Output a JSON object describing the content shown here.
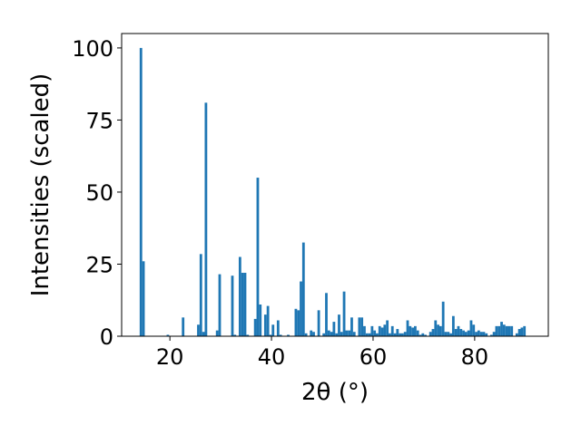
{
  "chart_data": {
    "type": "bar",
    "title": "",
    "xlabel": "2θ (°)",
    "ylabel": "Intensities (scaled)",
    "xlim": [
      10.5,
      94.5
    ],
    "ylim": [
      0,
      105
    ],
    "xticks": [
      20,
      40,
      60,
      80
    ],
    "yticks": [
      0,
      25,
      50,
      75,
      100
    ],
    "grid": false,
    "bar_color": "#1f77b4",
    "bin_width": 0.5,
    "x": [
      14.3,
      14.8,
      19.6,
      22.6,
      25.6,
      26.1,
      26.6,
      27.1,
      29.3,
      29.8,
      32.3,
      32.8,
      33.8,
      34.3,
      34.8,
      35.3,
      36.8,
      37.3,
      37.8,
      38.8,
      39.3,
      39.8,
      40.3,
      41.3,
      41.8,
      43.3,
      44.8,
      45.3,
      45.8,
      46.3,
      46.8,
      47.8,
      48.3,
      49.3,
      50.3,
      50.8,
      51.3,
      51.8,
      52.3,
      52.8,
      53.3,
      53.8,
      54.3,
      54.8,
      55.3,
      55.8,
      56.3,
      57.3,
      57.8,
      58.3,
      58.8,
      59.3,
      59.8,
      60.3,
      60.8,
      61.3,
      61.8,
      62.3,
      62.8,
      63.3,
      63.8,
      64.3,
      64.8,
      65.3,
      65.8,
      66.3,
      66.8,
      67.3,
      67.8,
      68.3,
      68.8,
      69.3,
      69.8,
      70.3,
      71.3,
      71.8,
      72.3,
      72.8,
      73.3,
      73.8,
      74.3,
      74.8,
      75.3,
      75.8,
      76.3,
      76.8,
      77.3,
      77.8,
      78.3,
      78.8,
      79.3,
      79.8,
      80.3,
      80.8,
      81.3,
      81.8,
      82.3,
      83.3,
      83.8,
      84.3,
      84.8,
      85.3,
      85.8,
      86.3,
      86.8,
      87.3,
      88.3,
      88.8,
      89.3,
      89.8
    ],
    "values": [
      100,
      26,
      0.5,
      6.5,
      4,
      28.5,
      1.5,
      81,
      2,
      21.5,
      21,
      0.5,
      27.5,
      22,
      22,
      0.5,
      6,
      55,
      11,
      7.5,
      10.5,
      0.5,
      4,
      5.5,
      0.5,
      0.5,
      9.5,
      9,
      19,
      32.5,
      1,
      2,
      1.5,
      9,
      1,
      15,
      2,
      1.5,
      5,
      1,
      7.5,
      1.5,
      15.5,
      2,
      2,
      6.5,
      1.5,
      6.5,
      6.5,
      3.5,
      1,
      1,
      3.5,
      2,
      1,
      3.5,
      3,
      4,
      5.5,
      1,
      3.5,
      1,
      2.5,
      1,
      1,
      1.5,
      5.5,
      3.5,
      3,
      3.5,
      2,
      0.5,
      1,
      0.5,
      1.5,
      2.5,
      5.5,
      4,
      3.5,
      12,
      1.5,
      1.5,
      1,
      7,
      2.5,
      3.5,
      2.5,
      2,
      1.5,
      2,
      5.5,
      4,
      1.5,
      2,
      1.5,
      1.5,
      1,
      0.5,
      1.5,
      3.5,
      3.5,
      5,
      4,
      3.5,
      3.5,
      3.5,
      1,
      2.5,
      3,
      3.5
    ]
  }
}
